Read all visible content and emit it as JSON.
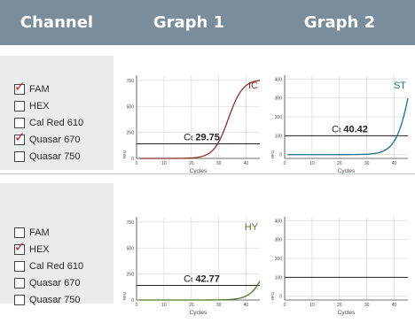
{
  "header": {
    "channel": "Channel",
    "graph1": "Graph 1",
    "graph2": "Graph 2"
  },
  "rows": [
    {
      "channels": [
        {
          "label": "FAM",
          "checked": true
        },
        {
          "label": "HEX",
          "checked": false
        },
        {
          "label": "Cal Red 610",
          "checked": false
        },
        {
          "label": "Quasar 670",
          "checked": true
        },
        {
          "label": "Quasar 750",
          "checked": false
        }
      ]
    },
    {
      "channels": [
        {
          "label": "FAM",
          "checked": false
        },
        {
          "label": "HEX",
          "checked": true
        },
        {
          "label": "Cal Red 610",
          "checked": false
        },
        {
          "label": "Quasar 670",
          "checked": false
        },
        {
          "label": "Quasar 750",
          "checked": false
        }
      ]
    }
  ],
  "chart_data": [
    {
      "id": "g11",
      "type": "line",
      "xlabel": "Cycles",
      "ylabel": "RFU",
      "xlim": [
        0,
        45
      ],
      "ylim": [
        0,
        800
      ],
      "xticks": [
        "0",
        "10",
        "20",
        "30",
        "40"
      ],
      "yticks": [
        "0",
        "250",
        "500",
        "750"
      ],
      "threshold": 140,
      "series": [
        {
          "name": "IC",
          "color": "#8a3326",
          "ct": 29.75,
          "plateau": 760,
          "k": 0.38,
          "mid": 33.5
        }
      ],
      "ct_prefix": "C",
      "ct_sub": "t",
      "ct_value": "29.75",
      "curve_label": "IC"
    },
    {
      "id": "g12",
      "type": "line",
      "xlabel": "Cycles",
      "ylabel": "RFU",
      "xlim": [
        0,
        45
      ],
      "ylim": [
        -20,
        420
      ],
      "xticks": [
        "0",
        "10",
        "20",
        "30",
        "40"
      ],
      "yticks": [
        "0",
        "100",
        "200",
        "300",
        "400"
      ],
      "threshold": 100,
      "series": [
        {
          "name": "ST",
          "color": "#1b6f8c",
          "ct": 40.42,
          "plateau": 900,
          "k": 0.35,
          "mid": 47
        }
      ],
      "ct_prefix": "C",
      "ct_sub": "t",
      "ct_value": "40.42",
      "curve_label": "ST"
    },
    {
      "id": "g21",
      "type": "line",
      "xlabel": "Cycles",
      "ylabel": "RFU",
      "xlim": [
        0,
        45
      ],
      "ylim": [
        0,
        800
      ],
      "xticks": [
        "0",
        "10",
        "20",
        "30",
        "40"
      ],
      "yticks": [
        "0",
        "250",
        "500",
        "750"
      ],
      "threshold": 140,
      "series": [
        {
          "name": "HY",
          "color": "#4c7a2e",
          "ct": 42.77,
          "plateau": 800,
          "k": 0.35,
          "mid": 48.5
        }
      ],
      "ct_prefix": "C",
      "ct_sub": "t",
      "ct_value": "42.77",
      "curve_label": "HY"
    },
    {
      "id": "g22",
      "type": "line",
      "xlabel": "Cycles",
      "ylabel": "RFU",
      "xlim": [
        0,
        45
      ],
      "ylim": [
        -20,
        420
      ],
      "xticks": [
        "0",
        "10",
        "20",
        "30",
        "40"
      ],
      "yticks": [
        "0",
        "100",
        "200",
        "300",
        "400"
      ],
      "threshold": 100,
      "series": [],
      "ct_prefix": "",
      "ct_sub": "",
      "ct_value": "",
      "curve_label": ""
    }
  ]
}
